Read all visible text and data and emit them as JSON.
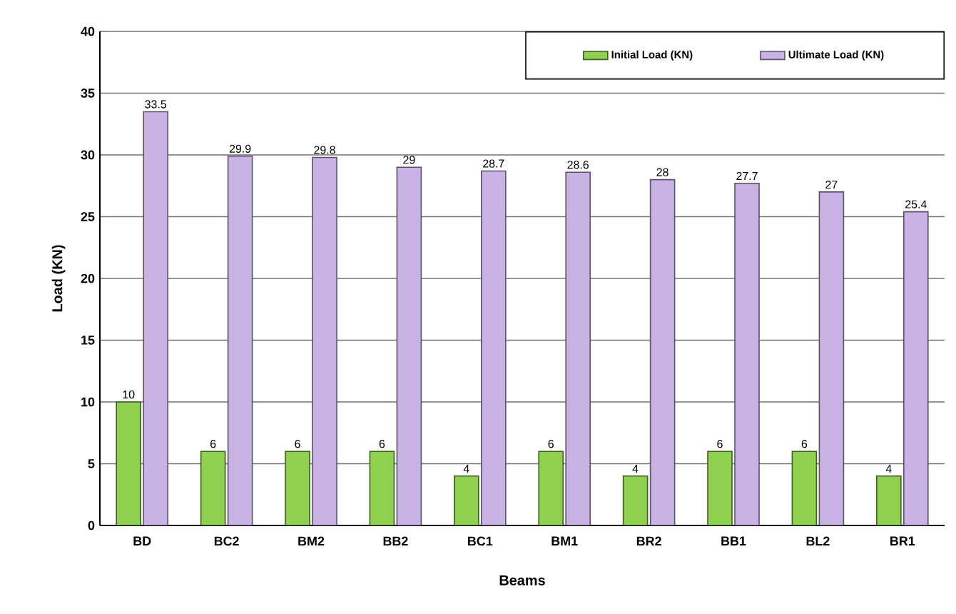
{
  "chart_data": {
    "type": "bar",
    "xlabel": "Beams",
    "ylabel": "Load (KN)",
    "categories": [
      "BD",
      "BC2",
      "BM2",
      "BB2",
      "BC1",
      "BM1",
      "BR2",
      "BB1",
      "BL2",
      "BR1"
    ],
    "series": [
      {
        "name": "Initial Load (KN)",
        "color": "#8fd14f",
        "values": [
          10,
          6,
          6,
          6,
          4,
          6,
          4,
          6,
          6,
          4
        ]
      },
      {
        "name": "Ultimate Load (KN)",
        "color": "#c8b3e4",
        "values": [
          33.5,
          29.9,
          29.8,
          29,
          28.7,
          28.6,
          28,
          27.7,
          27,
          25.4
        ]
      }
    ],
    "ylim": [
      0,
      40
    ],
    "yticks": [
      0,
      5,
      10,
      15,
      20,
      25,
      30,
      35,
      40
    ],
    "grid": "y",
    "legend": "top right",
    "data_labels": true
  }
}
